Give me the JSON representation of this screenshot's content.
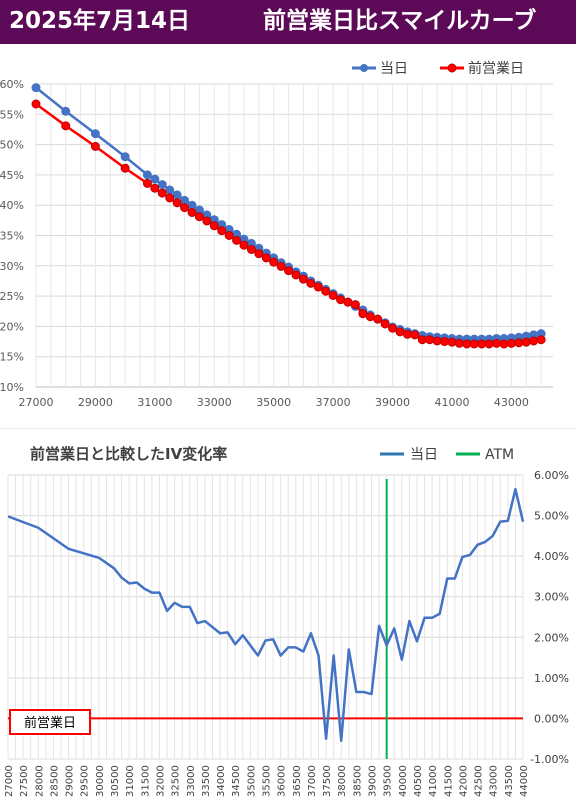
{
  "header": {
    "date": "2025年7月14日",
    "title": "前営業日比スマイルカーブ"
  },
  "colors": {
    "header_bg": "#5c0a57",
    "today": "#4472c4",
    "prev": "#ff0000",
    "atm": "#00b050",
    "baseline": "#ff0000"
  },
  "chart_data": [
    {
      "type": "line",
      "title": "",
      "xlabel": "",
      "ylabel": "",
      "legend_position": "top-right",
      "grid": true,
      "xlim": [
        27000,
        44400
      ],
      "ylim": [
        0.1,
        0.6
      ],
      "x_ticks": [
        27000,
        29000,
        31000,
        33000,
        35000,
        37000,
        39000,
        41000,
        43000
      ],
      "x_tick_labels": [
        "27000",
        "29000",
        "31000",
        "33000",
        "35000",
        "37000",
        "39000",
        "41000",
        "43000"
      ],
      "y_ticks": [
        0.1,
        0.15,
        0.2,
        0.25,
        0.3,
        0.35,
        0.4,
        0.45,
        0.5,
        0.55,
        0.6
      ],
      "y_tick_labels": [
        "10%",
        "15%",
        "20%",
        "25%",
        "30%",
        "35%",
        "40%",
        "45%",
        "50%",
        "55%",
        "60%"
      ],
      "x": [
        27000,
        28000,
        29000,
        30000,
        30750,
        31000,
        31250,
        31500,
        31750,
        32000,
        32250,
        32500,
        32750,
        33000,
        33250,
        33500,
        33750,
        34000,
        34250,
        34500,
        34750,
        35000,
        35250,
        35500,
        35750,
        36000,
        36250,
        36500,
        36750,
        37000,
        37250,
        37500,
        37750,
        38000,
        38250,
        38500,
        38750,
        39000,
        39250,
        39500,
        39750,
        40000,
        40250,
        40500,
        40750,
        41000,
        41250,
        41500,
        41750,
        42000,
        42250,
        42500,
        42750,
        43000,
        43250,
        43500,
        43750,
        44000
      ],
      "series": [
        {
          "name": "当日",
          "values": [
            0.594,
            0.555,
            0.518,
            0.48,
            0.45,
            0.443,
            0.434,
            0.425,
            0.417,
            0.408,
            0.4,
            0.392,
            0.384,
            0.376,
            0.368,
            0.36,
            0.352,
            0.344,
            0.337,
            0.329,
            0.321,
            0.313,
            0.305,
            0.298,
            0.29,
            0.283,
            0.275,
            0.268,
            0.261,
            0.254,
            0.247,
            0.24,
            0.233,
            0.227,
            0.219,
            0.212,
            0.206,
            0.199,
            0.195,
            0.191,
            0.188,
            0.185,
            0.183,
            0.182,
            0.181,
            0.18,
            0.179,
            0.179,
            0.179,
            0.179,
            0.179,
            0.18,
            0.18,
            0.181,
            0.182,
            0.184,
            0.186,
            0.188
          ]
        },
        {
          "name": "前営業日",
          "values": [
            0.567,
            0.531,
            0.497,
            0.461,
            0.436,
            0.428,
            0.42,
            0.412,
            0.404,
            0.396,
            0.388,
            0.381,
            0.374,
            0.366,
            0.358,
            0.35,
            0.342,
            0.334,
            0.327,
            0.32,
            0.313,
            0.306,
            0.299,
            0.292,
            0.285,
            0.278,
            0.271,
            0.265,
            0.258,
            0.251,
            0.244,
            0.24,
            0.236,
            0.221,
            0.216,
            0.212,
            0.204,
            0.197,
            0.191,
            0.187,
            0.186,
            0.178,
            0.178,
            0.176,
            0.175,
            0.174,
            0.172,
            0.171,
            0.171,
            0.171,
            0.171,
            0.172,
            0.171,
            0.172,
            0.173,
            0.174,
            0.176,
            0.178
          ]
        }
      ]
    },
    {
      "type": "line",
      "title": "前営業日と比較したIV変化率",
      "xlabel": "",
      "ylabel": "",
      "legend_position": "top-right",
      "grid": true,
      "y_axis_side": "right",
      "xlim": [
        27000,
        44000
      ],
      "ylim": [
        -0.01,
        0.06
      ],
      "x_ticks": [
        27000,
        27500,
        28000,
        28500,
        29000,
        29500,
        30000,
        30500,
        31000,
        31500,
        32000,
        32500,
        33000,
        33500,
        34000,
        34500,
        35000,
        35500,
        36000,
        36500,
        37000,
        37500,
        38000,
        38500,
        39000,
        39500,
        40000,
        40500,
        41000,
        41500,
        42000,
        42500,
        43000,
        43500,
        44000
      ],
      "x_tick_labels": [
        "27000",
        "27500",
        "28000",
        "28500",
        "29000",
        "29500",
        "30000",
        "30500",
        "31000",
        "31500",
        "32000",
        "32500",
        "33000",
        "33500",
        "34000",
        "34500",
        "35000",
        "35500",
        "36000",
        "36500",
        "37000",
        "37500",
        "38000",
        "38500",
        "39000",
        "39500",
        "40000",
        "40500",
        "41000",
        "41500",
        "42000",
        "42500",
        "43000",
        "43500",
        "44000"
      ],
      "y_ticks": [
        -0.01,
        0.0,
        0.01,
        0.02,
        0.03,
        0.04,
        0.05,
        0.06
      ],
      "y_tick_labels": [
        "-1.00%",
        "0.00%",
        "1.00%",
        "2.00%",
        "3.00%",
        "4.00%",
        "5.00%",
        "6.00%"
      ],
      "atm": 39500,
      "baseline_label": "前営業日",
      "legend": [
        {
          "name": "当日"
        },
        {
          "name": "ATM"
        }
      ],
      "series": [
        {
          "name": "当日",
          "x": [
            27000,
            28000,
            29000,
            30000,
            30500,
            30750,
            31000,
            31250,
            31500,
            31750,
            32000,
            32250,
            32500,
            32750,
            33000,
            33250,
            33500,
            33750,
            34000,
            34250,
            34500,
            34750,
            35000,
            35250,
            35500,
            35750,
            36000,
            36250,
            36500,
            36750,
            37000,
            37250,
            37500,
            37750,
            38000,
            38250,
            38500,
            38750,
            39000,
            39250,
            39500,
            39750,
            40000,
            40250,
            40500,
            40750,
            41000,
            41250,
            41500,
            41750,
            42000,
            42250,
            42500,
            42750,
            43000,
            43250,
            43500,
            43750,
            44000
          ],
          "values": [
            0.0498,
            0.047,
            0.0418,
            0.0396,
            0.037,
            0.0347,
            0.0333,
            0.0335,
            0.032,
            0.031,
            0.031,
            0.0265,
            0.0285,
            0.0275,
            0.0275,
            0.0235,
            0.024,
            0.0225,
            0.021,
            0.0212,
            0.0183,
            0.0205,
            0.018,
            0.0155,
            0.0192,
            0.0195,
            0.0155,
            0.0175,
            0.0175,
            0.0165,
            0.021,
            0.0155,
            -0.005,
            0.0155,
            -0.0055,
            0.017,
            0.0065,
            0.0065,
            0.006,
            0.0228,
            0.018,
            0.0222,
            0.0145,
            0.024,
            0.019,
            0.0248,
            0.0248,
            0.0258,
            0.0345,
            0.0345,
            0.0398,
            0.0403,
            0.0428,
            0.0435,
            0.045,
            0.0485,
            0.0487,
            0.0565,
            0.0485
          ]
        }
      ]
    }
  ]
}
